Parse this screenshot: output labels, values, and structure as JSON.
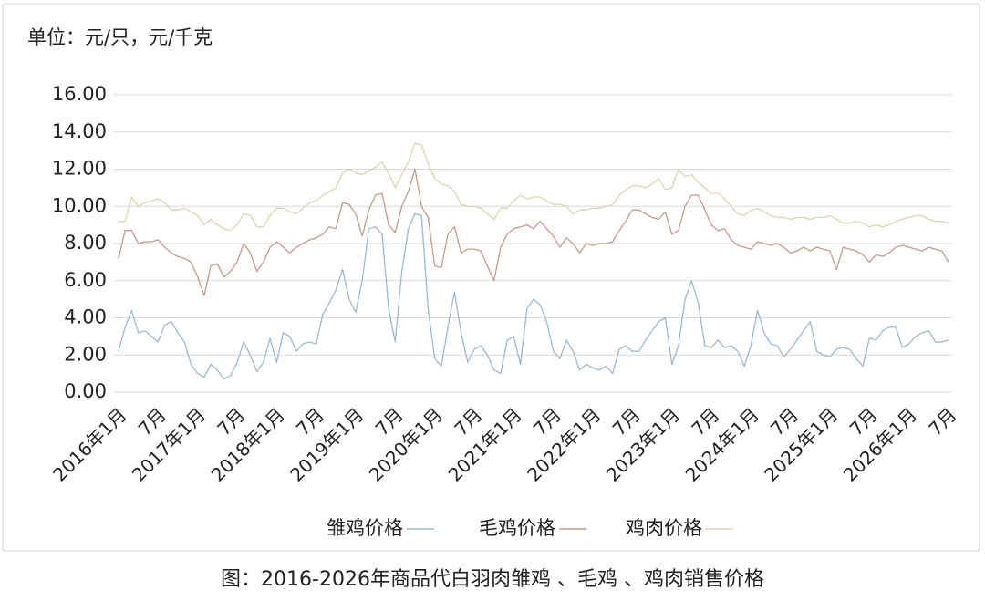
{
  "chart_data": {
    "type": "line",
    "unit_label": "单位：元/只，元/千克",
    "caption": "图：2016-2026年商品代白羽肉雏鸡 、毛鸡 、鸡肉销售价格",
    "categories": [
      "2016年1月",
      null,
      null,
      null,
      null,
      null,
      "7月",
      null,
      null,
      null,
      null,
      null,
      "2017年1月",
      null,
      null,
      null,
      null,
      null,
      "7月",
      null,
      null,
      null,
      null,
      null,
      "2018年1月",
      null,
      null,
      null,
      null,
      null,
      "7月",
      null,
      null,
      null,
      null,
      null,
      "2019年1月",
      null,
      null,
      null,
      null,
      null,
      "7月",
      null,
      null,
      null,
      null,
      null,
      "2020年1月",
      null,
      null,
      null,
      null,
      null,
      "7月",
      null,
      null,
      null,
      null,
      null,
      "2021年1月",
      null,
      null,
      null,
      null,
      null,
      "7月",
      null,
      null,
      null,
      null,
      null,
      "2022年1月",
      null,
      null,
      null,
      null,
      null,
      "7月",
      null,
      null,
      null,
      null,
      null,
      "2023年1月",
      null,
      null,
      null,
      null,
      null,
      "7月",
      null,
      null,
      null,
      null,
      null,
      "2024年1月",
      null,
      null,
      null,
      null,
      null,
      "7月",
      null,
      null,
      null,
      null,
      null,
      "2025年1月",
      null,
      null,
      null,
      null,
      null,
      "7月",
      null,
      null,
      null,
      null,
      null,
      "2026年1月",
      null,
      null,
      null,
      null,
      null,
      "7月"
    ],
    "series": [
      {
        "name": "雏鸡价格",
        "color": "#9fb8cc",
        "values": [
          2.2,
          3.5,
          4.4,
          3.2,
          3.3,
          3.0,
          2.7,
          3.6,
          3.8,
          3.2,
          2.7,
          1.5,
          1.0,
          0.8,
          1.5,
          1.2,
          0.7,
          0.9,
          1.6,
          2.7,
          2.0,
          1.1,
          1.6,
          2.9,
          1.6,
          3.2,
          3.0,
          2.2,
          2.6,
          2.7,
          2.6,
          4.2,
          4.8,
          5.5,
          6.6,
          5.0,
          4.3,
          6.0,
          8.8,
          8.9,
          8.5,
          4.5,
          2.7,
          6.5,
          8.8,
          9.6,
          9.5,
          4.5,
          1.8,
          1.4,
          3.5,
          5.4,
          3.2,
          1.6,
          2.3,
          2.5,
          2.0,
          1.2,
          1.0,
          2.8,
          3.0,
          1.5,
          4.5,
          5.0,
          4.7,
          3.8,
          2.2,
          1.8,
          2.8,
          2.2,
          1.2,
          1.5,
          1.3,
          1.2,
          1.4,
          1.0,
          2.3,
          2.5,
          2.2,
          2.2,
          2.8,
          3.3,
          3.8,
          4.0,
          1.5,
          2.5,
          5.0,
          6.0,
          4.8,
          2.5,
          2.4,
          2.8,
          2.4,
          2.5,
          2.2,
          1.4,
          2.5,
          4.4,
          3.2,
          2.6,
          2.5,
          1.9,
          2.3,
          2.8,
          3.3,
          3.8,
          2.2,
          2.0,
          1.9,
          2.3,
          2.4,
          2.3,
          1.8,
          1.4,
          2.9,
          2.8,
          3.3,
          3.5,
          3.5,
          2.4,
          2.6,
          3.0,
          3.2,
          3.3,
          2.7,
          2.7,
          2.8
        ]
      },
      {
        "name": "毛鸡价格",
        "color": "#c29c90",
        "values": [
          7.2,
          8.7,
          8.7,
          8.0,
          8.1,
          8.1,
          8.2,
          7.8,
          7.5,
          7.3,
          7.2,
          7.0,
          6.2,
          5.2,
          6.8,
          6.9,
          6.2,
          6.5,
          7.0,
          8.0,
          7.5,
          6.5,
          7.0,
          7.8,
          8.1,
          7.8,
          7.5,
          7.8,
          8.0,
          8.2,
          8.3,
          8.5,
          8.9,
          8.8,
          10.2,
          10.1,
          9.6,
          8.4,
          9.8,
          10.6,
          10.7,
          9.0,
          8.6,
          10.0,
          10.8,
          12.0,
          10.0,
          9.4,
          6.8,
          6.7,
          8.5,
          8.9,
          7.5,
          7.7,
          7.7,
          7.6,
          6.8,
          6.0,
          7.8,
          8.5,
          8.8,
          8.9,
          9.0,
          8.8,
          9.2,
          8.8,
          8.4,
          7.8,
          8.3,
          8.0,
          7.5,
          8.0,
          7.9,
          8.0,
          8.0,
          8.1,
          8.7,
          9.2,
          9.8,
          9.8,
          9.6,
          9.4,
          9.3,
          9.7,
          8.5,
          8.7,
          10.0,
          10.6,
          10.6,
          9.8,
          9.0,
          8.7,
          8.8,
          8.2,
          7.9,
          7.8,
          7.7,
          8.1,
          8.0,
          7.9,
          8.0,
          7.8,
          7.5,
          7.6,
          7.8,
          7.6,
          7.8,
          7.7,
          7.6,
          6.6,
          7.8,
          7.7,
          7.6,
          7.4,
          7.0,
          7.4,
          7.3,
          7.5,
          7.8,
          7.9,
          7.8,
          7.7,
          7.6,
          7.8,
          7.7,
          7.6,
          7.0
        ]
      },
      {
        "name": "鸡肉价格",
        "color": "#ddd3b2",
        "values": [
          9.2,
          9.2,
          10.5,
          10.0,
          10.2,
          10.3,
          10.4,
          10.2,
          9.8,
          9.8,
          9.9,
          9.7,
          9.5,
          9.0,
          9.3,
          9.0,
          8.8,
          8.7,
          9.0,
          9.6,
          9.5,
          8.9,
          8.9,
          9.5,
          9.9,
          9.9,
          9.7,
          9.6,
          9.9,
          10.2,
          10.3,
          10.6,
          10.8,
          11.0,
          11.8,
          12.0,
          11.8,
          11.7,
          11.9,
          12.1,
          12.4,
          11.8,
          11.0,
          11.7,
          12.4,
          13.4,
          13.3,
          12.3,
          11.5,
          11.2,
          11.1,
          10.8,
          10.1,
          10.0,
          10.0,
          9.9,
          9.6,
          9.3,
          9.9,
          9.9,
          10.3,
          10.6,
          10.4,
          10.5,
          10.5,
          10.3,
          10.1,
          10.1,
          10.0,
          9.6,
          9.8,
          9.8,
          9.9,
          9.9,
          10.0,
          10.1,
          10.6,
          10.9,
          11.1,
          11.1,
          11.0,
          11.2,
          11.5,
          10.9,
          11.0,
          12.0,
          11.6,
          11.7,
          11.3,
          11.0,
          10.7,
          10.7,
          10.4,
          10.0,
          9.6,
          9.5,
          9.8,
          9.9,
          9.7,
          9.5,
          9.4,
          9.4,
          9.3,
          9.4,
          9.4,
          9.3,
          9.4,
          9.4,
          9.5,
          9.3,
          9.1,
          9.1,
          9.2,
          9.1,
          8.9,
          9.0,
          8.9,
          9.0,
          9.2,
          9.3,
          9.4,
          9.5,
          9.5,
          9.3,
          9.2,
          9.2,
          9.1
        ]
      }
    ],
    "ylim": [
      0,
      16
    ],
    "yticks": [
      {
        "value": 0,
        "label": "0.00"
      },
      {
        "value": 2,
        "label": "2.00"
      },
      {
        "value": 4,
        "label": "4.00"
      },
      {
        "value": 6,
        "label": "6.00"
      },
      {
        "value": 8,
        "label": "8.00"
      },
      {
        "value": 10,
        "label": "10.00"
      },
      {
        "value": 12,
        "label": "12.00"
      },
      {
        "value": 14,
        "label": "14.00"
      },
      {
        "value": 16,
        "label": "16.00"
      }
    ],
    "grid": true,
    "legend": "bottom"
  }
}
